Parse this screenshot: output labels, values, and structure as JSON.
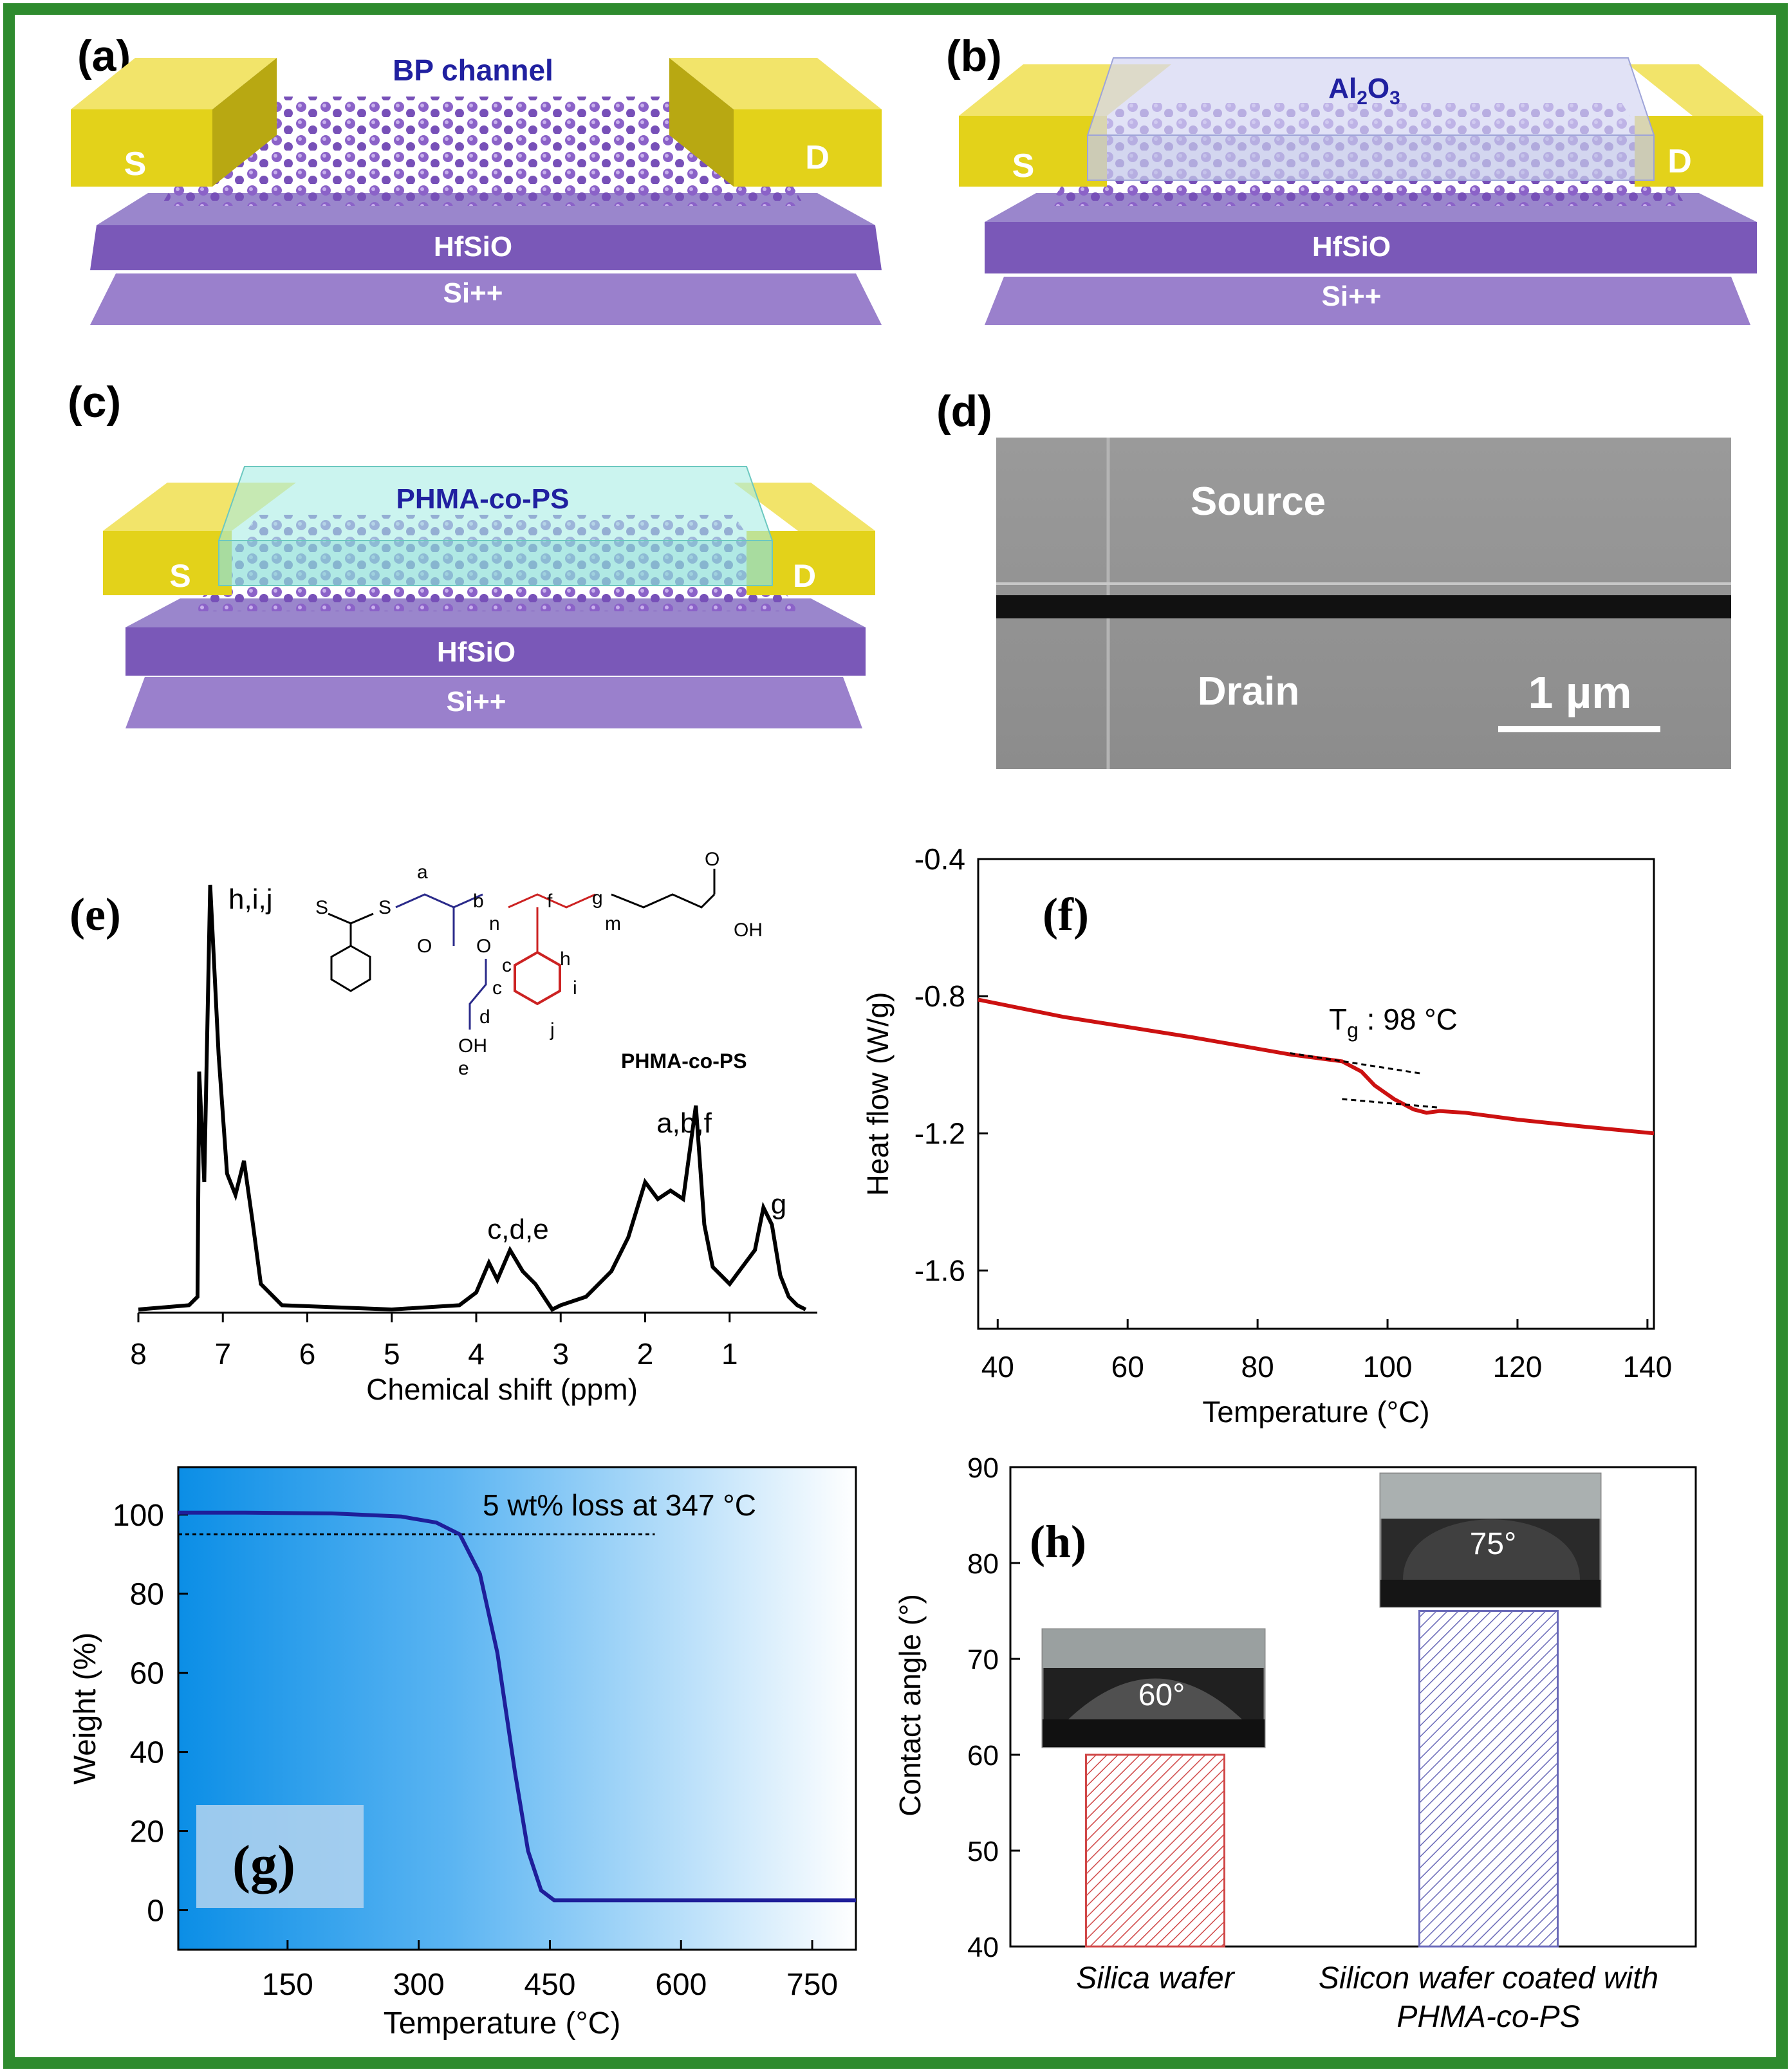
{
  "panels": {
    "a": {
      "label": "(a)",
      "title": "BP channel",
      "source": "S",
      "drain": "D",
      "layer1": "HfSiO",
      "layer2": "Si++"
    },
    "b": {
      "label": "(b)",
      "title_main": "Al",
      "title_sub1": "2",
      "title_mid": "O",
      "title_sub2": "3",
      "source": "S",
      "drain": "D",
      "layer1": "HfSiO",
      "layer2": "Si++"
    },
    "c": {
      "label": "(c)",
      "title": "PHMA-co-PS",
      "source": "S",
      "drain": "D",
      "layer1": "HfSiO",
      "layer2": "Si++"
    },
    "d": {
      "label": "(d)",
      "top": "Source",
      "bottom": "Drain",
      "scalebar": "1 µm"
    },
    "e": {
      "label": "(e)",
      "xlabel": "Chemical shift (ppm)",
      "polymer_name": "PHMA-co-PS",
      "peak_labels": [
        "h,i,j",
        "c,d,e",
        "a,b,f",
        "g"
      ],
      "struct_letters": [
        "S",
        "S",
        "a",
        "b",
        "n",
        "f",
        "g",
        "m",
        "O",
        "OH",
        "O",
        "O",
        "c",
        "d",
        "OH",
        "e",
        "h",
        "i",
        "j"
      ]
    },
    "f": {
      "label": "(f)",
      "ylabel": "Heat flow (W/g)",
      "xlabel": "Temperature (°C)",
      "annot_main": "T",
      "annot_sub": "g",
      "annot_rest": " : 98 °C"
    },
    "g": {
      "label": "(g)",
      "ylabel": "Weight (%)",
      "xlabel": "Temperature (°C)",
      "annotation": "5 wt% loss at 347 °C"
    },
    "h": {
      "label": "(h)",
      "ylabel": "Contact angle (°)",
      "cat1": "Silica wafer",
      "cat2_line1": "Silicon wafer coated with",
      "cat2_line2": "PHMA-co-PS",
      "inset1": "60°",
      "inset2": "75°"
    }
  },
  "chart_data": [
    {
      "panel": "e",
      "type": "line",
      "xlabel": "Chemical shift (ppm)",
      "ylabel": "",
      "xlim": [
        8,
        0
      ],
      "x_ticks": [
        8,
        7,
        6,
        5,
        4,
        3,
        2,
        1
      ],
      "series": [
        {
          "x": [
            8.0,
            7.4,
            7.3,
            7.28,
            7.22,
            7.15,
            7.05,
            6.95,
            6.85,
            6.75,
            6.65,
            6.55,
            6.3,
            5.0,
            4.2,
            4.0,
            3.85,
            3.75,
            3.6,
            3.45,
            3.3,
            3.1,
            3.0,
            2.7,
            2.4,
            2.2,
            2.0,
            1.85,
            1.7,
            1.55,
            1.4,
            1.3,
            1.2,
            1.0,
            0.85,
            0.7,
            0.6,
            0.5,
            0.4,
            0.3,
            0.2,
            0.1
          ],
          "y": [
            0,
            1,
            3,
            56,
            30,
            100,
            60,
            32,
            27,
            35,
            21,
            6,
            1,
            0,
            1,
            4,
            11,
            7,
            14,
            9,
            6,
            0,
            1,
            3,
            9,
            17,
            30,
            26,
            28,
            26,
            48,
            20,
            10,
            6,
            10,
            14,
            24,
            20,
            8,
            3,
            1,
            0
          ]
        }
      ]
    },
    {
      "panel": "f",
      "type": "line",
      "xlabel": "Temperature (°C)",
      "ylabel": "Heat flow (W/g)",
      "xlim": [
        37,
        141
      ],
      "ylim": [
        -1.77,
        -0.4
      ],
      "x_ticks": [
        40,
        60,
        80,
        100,
        120,
        140
      ],
      "y_ticks": [
        -0.4,
        -0.8,
        -1.2,
        -1.6
      ],
      "series": [
        {
          "x": [
            37,
            50,
            70,
            85,
            93,
            96,
            98,
            101,
            104,
            106,
            108,
            112,
            120,
            130,
            141
          ],
          "y": [
            -0.81,
            -0.86,
            -0.92,
            -0.97,
            -0.99,
            -1.02,
            -1.06,
            -1.1,
            -1.13,
            -1.14,
            -1.135,
            -1.14,
            -1.16,
            -1.18,
            -1.2
          ]
        }
      ],
      "tangent_lines": [
        {
          "x": [
            85,
            105
          ],
          "y": [
            -0.966,
            -1.025
          ]
        },
        {
          "x": [
            93,
            108
          ],
          "y": [
            -1.1,
            -1.125
          ]
        }
      ]
    },
    {
      "panel": "g",
      "type": "line",
      "xlabel": "Temperature (°C)",
      "ylabel": "Weight (%)",
      "xlim": [
        25,
        800
      ],
      "ylim": [
        -10,
        112
      ],
      "x_ticks": [
        150,
        300,
        450,
        600,
        750
      ],
      "y_ticks": [
        0,
        20,
        40,
        60,
        80,
        100
      ],
      "series": [
        {
          "x": [
            25,
            100,
            200,
            280,
            320,
            347,
            370,
            390,
            410,
            425,
            440,
            455,
            470,
            600,
            800
          ],
          "y": [
            100.5,
            100.5,
            100.3,
            99.5,
            98,
            95,
            85,
            65,
            35,
            15,
            5,
            2.5,
            2.5,
            2.5,
            2.5
          ]
        }
      ],
      "reference_line": {
        "y": 95,
        "x": [
          25,
          570
        ]
      }
    },
    {
      "panel": "h",
      "type": "bar",
      "categories": [
        "Silica wafer",
        "Silicon wafer coated with PHMA-co-PS"
      ],
      "values": [
        60,
        75
      ],
      "ylabel": "Contact angle (°)",
      "ylim": [
        40,
        90
      ],
      "y_ticks": [
        40,
        50,
        60,
        70,
        80,
        90
      ],
      "colors": [
        "#d04848",
        "#6a6ab8"
      ]
    }
  ],
  "colors": {
    "border": "#2e8b2e",
    "gold": "#e3d21a",
    "purple": "#7a58b8",
    "blue_line": "#1e1e9a",
    "red_line": "#cc1111"
  }
}
